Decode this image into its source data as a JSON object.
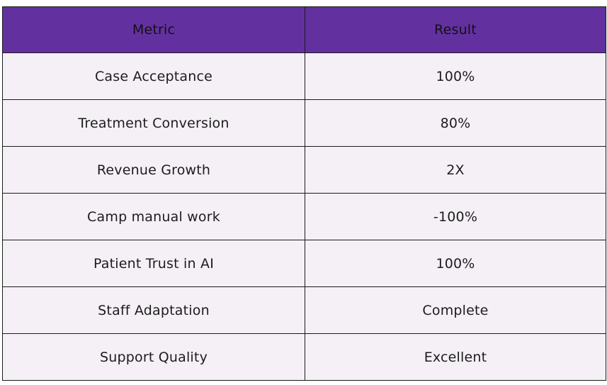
{
  "colors": {
    "header_bg": "#6330a0",
    "row_bg": "#f5f0f6",
    "border": "#1b1b1b"
  },
  "table": {
    "headers": [
      "Metric",
      "Result"
    ],
    "rows": [
      [
        "Case Acceptance",
        "100%"
      ],
      [
        "Treatment Conversion",
        "80%"
      ],
      [
        "Revenue Growth",
        "2X"
      ],
      [
        "Camp manual work",
        "-100%"
      ],
      [
        "Patient Trust in AI",
        "100%"
      ],
      [
        "Staff Adaptation",
        "Complete"
      ],
      [
        "Support Quality",
        "Excellent"
      ]
    ]
  }
}
